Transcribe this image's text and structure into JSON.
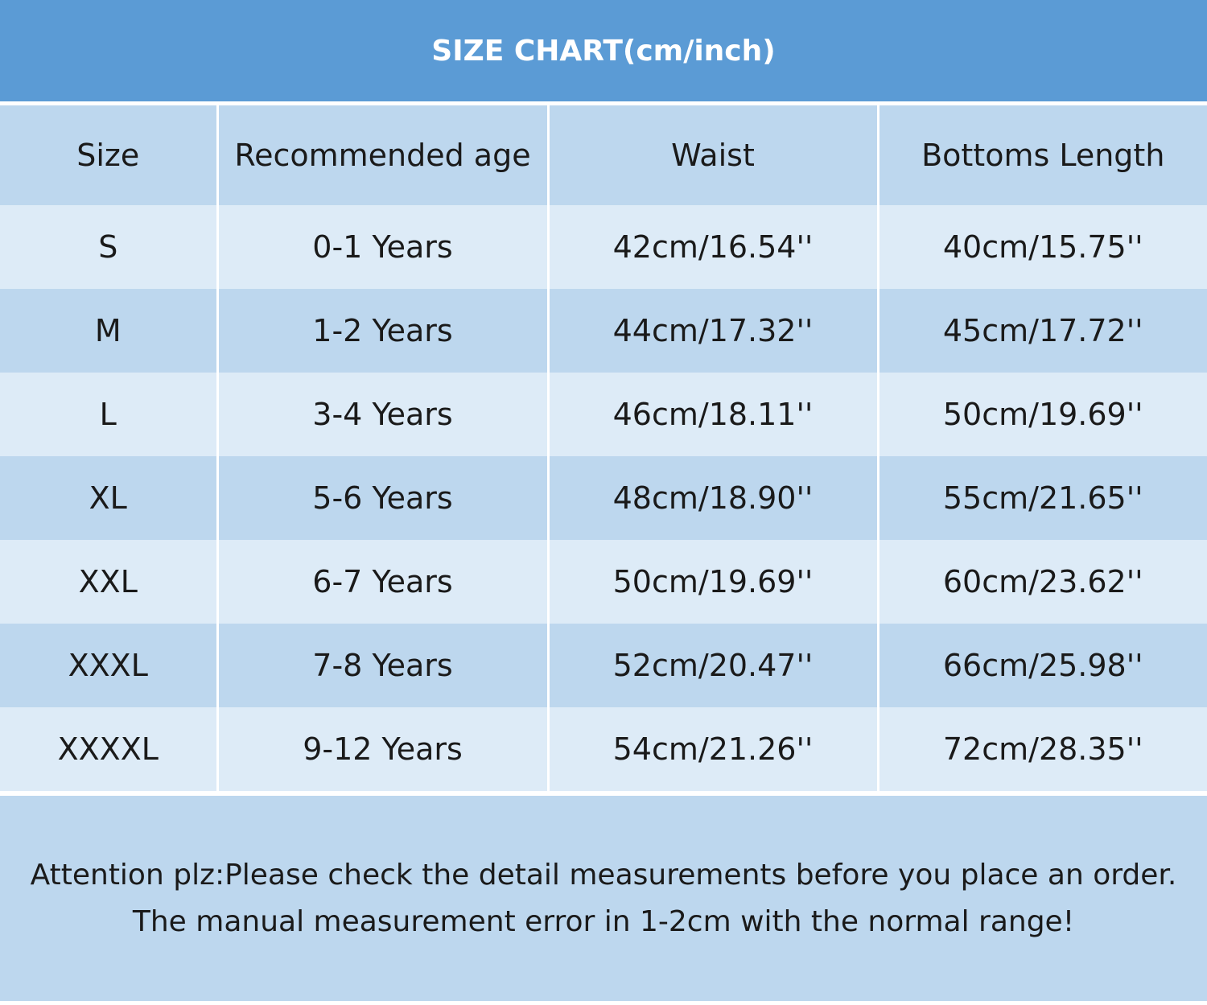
{
  "title": "SIZE CHART(cm/inch)",
  "table": {
    "headers": [
      "Size",
      "Recommended age",
      "Waist",
      "Bottoms Length"
    ],
    "rows": [
      [
        "S",
        "0-1 Years",
        "42cm/16.54''",
        "40cm/15.75''"
      ],
      [
        "M",
        "1-2 Years",
        "44cm/17.32''",
        "45cm/17.72''"
      ],
      [
        "L",
        "3-4 Years",
        "46cm/18.11''",
        "50cm/19.69''"
      ],
      [
        "XL",
        "5-6 Years",
        "48cm/18.90''",
        "55cm/21.65''"
      ],
      [
        "XXL",
        "6-7 Years",
        "50cm/19.69''",
        "60cm/23.62''"
      ],
      [
        "XXXL",
        "7-8 Years",
        "52cm/20.47''",
        "66cm/25.98''"
      ],
      [
        "XXXXL",
        "9-12 Years",
        "54cm/21.26''",
        "72cm/28.35''"
      ]
    ]
  },
  "note": {
    "line1": "Attention plz:Please check the detail measurements before you place an order.",
    "line2": "The manual measurement error in 1-2cm with the normal range!"
  },
  "colors": {
    "title_bar": "#5b9bd5",
    "header_row": "#bdd7ee",
    "row_light": "#ddebf7",
    "row_dark": "#bdd7ee",
    "note_box": "#bdd7ee"
  }
}
